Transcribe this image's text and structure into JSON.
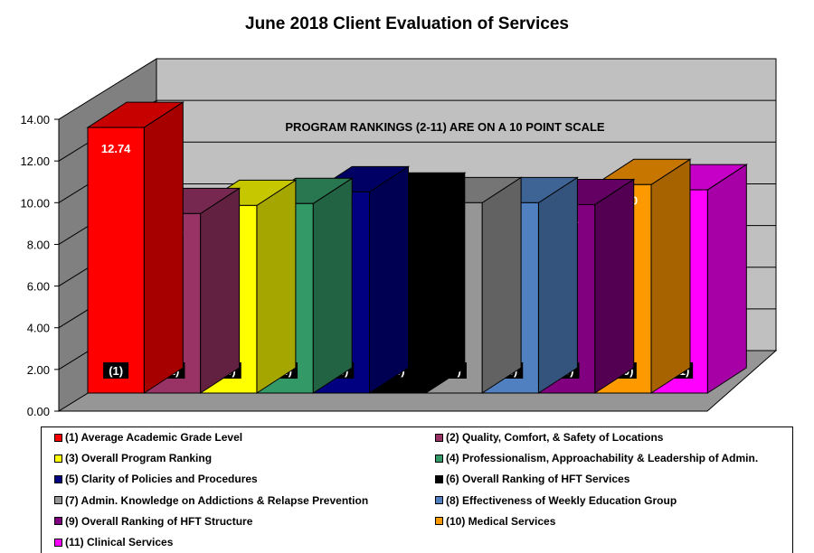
{
  "chart_data": {
    "type": "bar",
    "title": "June 2018 Client Evaluation of Services",
    "annotation": "PROGRAM RANKINGS (2-11) ARE ON A 10 POINT SCALE",
    "three_d": true,
    "grid": true,
    "legend_position": "bottom",
    "ylim": [
      0,
      14
    ],
    "yticks": [
      "0.00",
      "2.00",
      "4.00",
      "6.00",
      "8.00",
      "10.00",
      "12.00",
      "14.00"
    ],
    "categories": [
      "(1)",
      "(2)",
      "(3)",
      "(4)",
      "(5)",
      "(6)",
      "(7)",
      "(8)",
      "(9)",
      "(10)",
      "(11)"
    ],
    "values": [
      12.74,
      8.61,
      9.0,
      9.09,
      9.65,
      9.35,
      9.13,
      9.13,
      9.04,
      10.0,
      9.75
    ],
    "value_labels": [
      "12.74",
      "8.61",
      "9.00",
      "9.09",
      "9.65",
      "9.35",
      "9.13",
      "9.13",
      "9.04",
      "10.00",
      "9.75"
    ],
    "colors": [
      "#FF0000",
      "#993366",
      "#FFFF00",
      "#339966",
      "#000080",
      "#000000",
      "#969696",
      "#5080C0",
      "#800080",
      "#FF9900",
      "#FF00FF"
    ],
    "legend": [
      "(1) Average Academic Grade Level",
      "(2) Quality, Comfort, & Safety of Locations",
      "(3) Overall Program Ranking",
      "(4) Professionalism, Approachability  & Leadership of Admin.",
      "(5) Clarity of Policies and Procedures",
      "(6) Overall Ranking of HFT Services",
      "(7) Admin. Knowledge on Addictions & Relapse Prevention",
      "(8) Effectiveness of Weekly Education Group",
      "(9) Overall Ranking of HFT Structure",
      "(10) Medical Services",
      "(11) Clinical Services"
    ]
  }
}
